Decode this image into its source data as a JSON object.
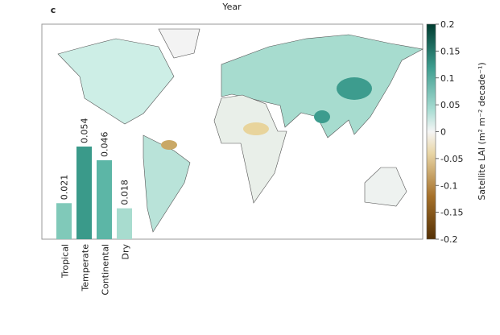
{
  "panel_label": "c",
  "title": "Year",
  "colorbar": {
    "label": "Satellite LAI (m² m⁻² decade⁻¹)",
    "lim": [
      -0.2,
      0.2
    ],
    "ticks": [
      0.2,
      0.15,
      0.1,
      0.05,
      0,
      -0.05,
      -0.1,
      -0.15,
      -0.2
    ]
  },
  "chart_data": {
    "type": "bar",
    "categories": [
      "Tropical",
      "Temperate",
      "Continental",
      "Dry"
    ],
    "values": [
      0.021,
      0.054,
      0.046,
      0.018
    ],
    "colors": [
      "#80c9b9",
      "#3a9a8a",
      "#5cb6a6",
      "#a8dccf"
    ]
  }
}
